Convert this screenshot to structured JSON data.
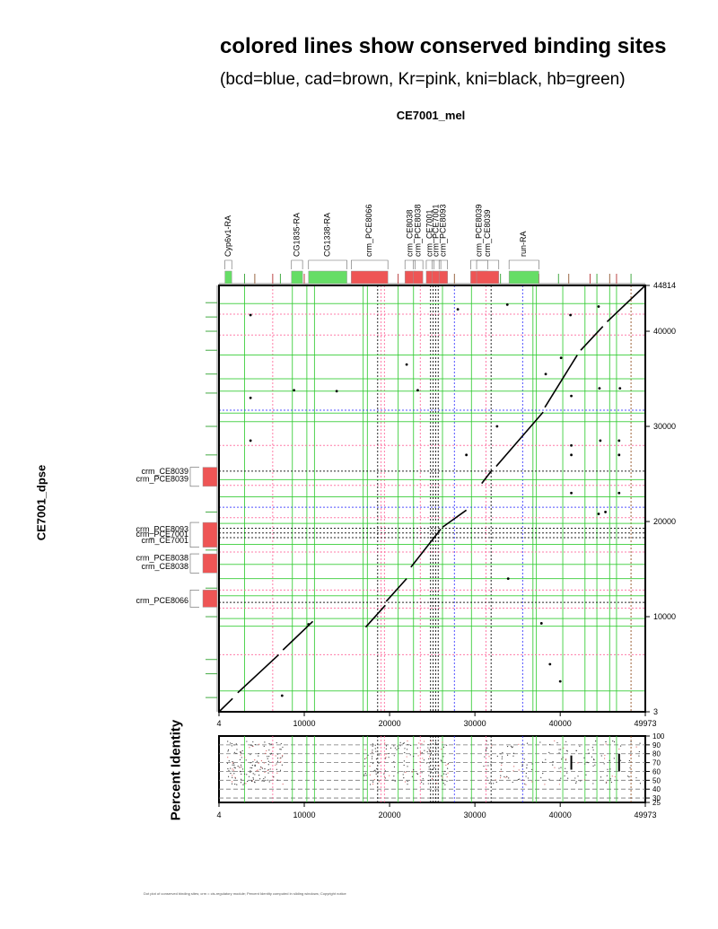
{
  "header": {
    "title": "colored lines show conserved binding sites",
    "subtitle": "(bcd=blue, cad=brown, Kr=pink, kni=black, hb=green)",
    "plot_title": "CE7001_mel"
  },
  "footer": {
    "text": "Dot plot of conserved binding sites; crm = cis-regulatory module; Percent Identity computed in sliding windows; Copyright notice"
  },
  "colors": {
    "bcd": "#3333ff",
    "cad": "#8b4513",
    "Kr": "#ff6699",
    "kni": "#000000",
    "hb": "#33cc33",
    "crm_box": "#ee5555",
    "gene_box": "#66dd66"
  },
  "chart_data": [
    {
      "type": "scatter",
      "title": "CE7001_mel",
      "xlabel": "",
      "ylabel": "CE7001_dpse",
      "xlim": [
        4,
        49973
      ],
      "ylim": [
        3,
        44814
      ],
      "x_ticks": [
        "4",
        "10000",
        "20000",
        "30000",
        "40000",
        "49973"
      ],
      "y_ticks": [
        "3",
        "10000",
        "20000",
        "30000",
        "40000",
        "44814"
      ],
      "top_annotations": [
        {
          "label": "Cyp6v1-RA",
          "type": "gene",
          "start": 700,
          "end": 1500
        },
        {
          "label": "CG1835-RA",
          "type": "gene",
          "start": 8500,
          "end": 9800
        },
        {
          "label": "CG1338-RA",
          "type": "gene",
          "start": 10500,
          "end": 15000
        },
        {
          "label": "crm_PCE8066",
          "type": "crm",
          "start": 15500,
          "end": 19800
        },
        {
          "label": "crm_CE8038",
          "type": "crm",
          "start": 21800,
          "end": 23000
        },
        {
          "label": "crm_PCE8038",
          "type": "crm",
          "start": 22800,
          "end": 23900
        },
        {
          "label": "crm_CE7001",
          "type": "crm",
          "start": 24300,
          "end": 25200
        },
        {
          "label": "crm_PCE7001",
          "type": "crm",
          "start": 25000,
          "end": 26000
        },
        {
          "label": "crm_PCE8093",
          "type": "crm",
          "start": 25800,
          "end": 26800
        },
        {
          "label": "crm_PCE8039",
          "type": "crm",
          "start": 29500,
          "end": 31500
        },
        {
          "label": "crm_CE8039",
          "type": "crm",
          "start": 30200,
          "end": 32800
        },
        {
          "label": "run-RA",
          "type": "gene",
          "start": 34000,
          "end": 37500
        }
      ],
      "left_annotations": [
        {
          "label": "crm_CE8039",
          "y": 25300
        },
        {
          "label": "crm_PCE8039",
          "y": 24500
        },
        {
          "label": "crm_PCE8093",
          "y": 19200
        },
        {
          "label": "crm_PCE7001",
          "y": 18700
        },
        {
          "label": "crm_CE7001",
          "y": 18000
        },
        {
          "label": "crm_PCE8038",
          "y": 16200
        },
        {
          "label": "crm_CE8038",
          "y": 15300
        },
        {
          "label": "crm_PCE8066",
          "y": 11700
        }
      ],
      "diagonal_segments": [
        [
          4,
          3,
          1600,
          1400
        ],
        [
          2200,
          2000,
          7000,
          6000
        ],
        [
          7500,
          6500,
          11000,
          9500
        ],
        [
          17200,
          8900,
          19500,
          11200
        ],
        [
          19600,
          11600,
          22000,
          14000
        ],
        [
          22500,
          15200,
          26000,
          19200
        ],
        [
          26200,
          19400,
          29000,
          21200
        ],
        [
          30800,
          24000,
          32000,
          25400
        ],
        [
          32500,
          25800,
          38000,
          31500
        ],
        [
          38200,
          32000,
          42000,
          37500
        ],
        [
          42400,
          38000,
          45000,
          40500
        ],
        [
          45500,
          41000,
          49973,
          44814
        ]
      ],
      "scatter_points": [
        [
          3700,
          41700
        ],
        [
          3700,
          33000
        ],
        [
          3700,
          28500
        ],
        [
          8800,
          33800
        ],
        [
          13800,
          33700
        ],
        [
          22000,
          36500
        ],
        [
          23300,
          33800
        ],
        [
          28000,
          42300
        ],
        [
          29000,
          27000
        ],
        [
          32600,
          30000
        ],
        [
          33800,
          42800
        ],
        [
          38300,
          35500
        ],
        [
          40100,
          37200
        ],
        [
          41200,
          41700
        ],
        [
          41300,
          33200
        ],
        [
          41300,
          27000
        ],
        [
          41300,
          28000
        ],
        [
          41300,
          23000
        ],
        [
          44500,
          42600
        ],
        [
          44600,
          34000
        ],
        [
          44700,
          28500
        ],
        [
          46900,
          28500
        ],
        [
          46900,
          23000
        ],
        [
          46900,
          27000
        ],
        [
          47000,
          34000
        ],
        [
          45300,
          21000
        ],
        [
          44500,
          20800
        ],
        [
          33900,
          14000
        ],
        [
          37800,
          9300
        ],
        [
          38800,
          5000
        ],
        [
          40000,
          3200
        ],
        [
          7400,
          1700
        ],
        [
          10500,
          9200
        ]
      ]
    },
    {
      "type": "scatter",
      "title": "",
      "xlabel": "",
      "ylabel": "Percent Identity",
      "xlim": [
        4,
        49973
      ],
      "ylim": [
        25,
        100
      ],
      "x_ticks": [
        "4",
        "10000",
        "20000",
        "30000",
        "40000",
        "49973"
      ],
      "y_ticks": [
        "100",
        "90",
        "80",
        "70",
        "60",
        "50",
        "40",
        "30",
        "25"
      ]
    }
  ]
}
